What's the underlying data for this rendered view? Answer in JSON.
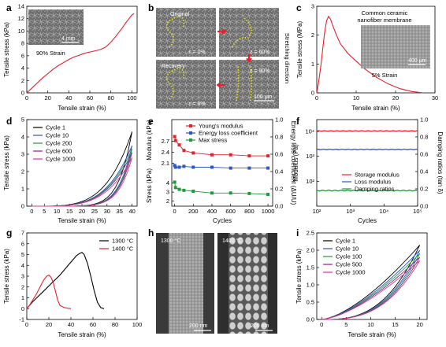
{
  "chart_data": [
    {
      "id": "a",
      "type": "line",
      "panel_label": "a",
      "xlabel": "Tensile strain (%)",
      "ylabel": "Tensile stress (kPa)",
      "xlim": [
        0,
        105
      ],
      "ylim": [
        0,
        14
      ],
      "xticks": [
        "0",
        "20",
        "40",
        "60",
        "80",
        "100"
      ],
      "yticks": [
        "0",
        "2",
        "4",
        "6",
        "8",
        "10",
        "12",
        "14"
      ],
      "series": [
        {
          "color": "#e8202a",
          "x": [
            0,
            5,
            10,
            15,
            20,
            25,
            30,
            35,
            40,
            45,
            50,
            55,
            60,
            65,
            70,
            75,
            80,
            85,
            90,
            95,
            100,
            102
          ],
          "y": [
            0,
            0.8,
            1.6,
            2.4,
            3.1,
            3.8,
            4.4,
            4.9,
            5.4,
            5.8,
            6.1,
            6.4,
            6.6,
            6.8,
            7.0,
            7.4,
            8.2,
            9.2,
            10.3,
            11.5,
            12.6,
            12.8
          ]
        }
      ],
      "inset": {
        "caption": "90% Strain",
        "scale_bar": "4 mm"
      }
    },
    {
      "id": "b",
      "type": "image_grid",
      "panel_label": "b",
      "tiles": [
        {
          "label": "Original",
          "strain": "ε = 0%"
        },
        {
          "label": "",
          "strain": "ε = 60%"
        },
        {
          "label": "Recovery",
          "strain": "ε = 0%"
        },
        {
          "label": "",
          "strain": "ε = 90%"
        }
      ],
      "side_label": "Stretching direction",
      "scale_bar": "100 μm"
    },
    {
      "id": "c",
      "type": "line",
      "panel_label": "c",
      "title": "Common ceramic nanofiber membrane",
      "xlabel": "Tensile strain (%)",
      "ylabel": "Tensile stress (MPa)",
      "xlim": [
        0,
        30
      ],
      "ylim": [
        0,
        3
      ],
      "xticks": [
        "0",
        "10",
        "20",
        "30"
      ],
      "yticks": [
        "0",
        "1",
        "2",
        "3"
      ],
      "series": [
        {
          "color": "#e8202a",
          "x": [
            0,
            0.5,
            1,
            1.5,
            2,
            2.5,
            3,
            3.5,
            4,
            5,
            6,
            8,
            10,
            12,
            15,
            18,
            21,
            24,
            27
          ],
          "y": [
            0,
            0.4,
            0.9,
            1.5,
            2.1,
            2.5,
            2.65,
            2.55,
            2.35,
            2.0,
            1.7,
            1.35,
            1.1,
            0.85,
            0.55,
            0.32,
            0.15,
            0.05,
            0.0
          ]
        }
      ],
      "inset": {
        "caption": "5% Strain",
        "scale_bar": "400 μm"
      }
    },
    {
      "id": "d",
      "type": "line",
      "panel_label": "d",
      "xlabel": "Tensile strain (%)",
      "ylabel": "Tensile stress (kPa)",
      "xlim": [
        -2,
        42
      ],
      "ylim": [
        0,
        5
      ],
      "xticks": [
        "0",
        "5",
        "10",
        "15",
        "20",
        "25",
        "30",
        "35",
        "40"
      ],
      "yticks": [
        "0",
        "1",
        "2",
        "3",
        "4",
        "5"
      ],
      "legend_position": "top-left",
      "series": [
        {
          "name": "Cycle 1",
          "color": "#000000",
          "peak": 4.3
        },
        {
          "name": "Cycle 10",
          "color": "#2b55c9",
          "peak": 3.5
        },
        {
          "name": "Cycle 200",
          "color": "#1e9b3a",
          "peak": 3.3
        },
        {
          "name": "Cycle 600",
          "color": "#8a1f9a",
          "peak": 3.1
        },
        {
          "name": "Cycle 1000",
          "color": "#d63a8e",
          "peak": 2.8
        }
      ]
    },
    {
      "id": "e",
      "type": "line",
      "panel_label": "e",
      "xlabel": "Cycles",
      "ylabel_left_top": "Modulus (kPa)",
      "ylabel_left_bottom": "Stress (kPa)",
      "ylabel_right": "Energy loss coefficient (ΔU/U)",
      "xlim": [
        -30,
        1050
      ],
      "xticks": [
        "0",
        "200",
        "400",
        "600",
        "800",
        "1000"
      ],
      "yticks_left_top": [
        "2.1",
        "2.4",
        "2.7"
      ],
      "yticks_left_bottom": [
        "2",
        "3",
        "4"
      ],
      "yticks_right": [
        "0.0",
        "0.2",
        "0.4",
        "0.6",
        "0.8",
        "1.0"
      ],
      "legend_position": "top-right",
      "x": [
        1,
        10,
        50,
        100,
        200,
        400,
        600,
        800,
        1000
      ],
      "series": [
        {
          "name": "Young's modulus",
          "color": "#e8202a",
          "marker": "square",
          "axis": "left_top",
          "values": [
            2.83,
            2.72,
            2.6,
            2.45,
            2.38,
            2.33,
            2.33,
            2.3,
            2.3
          ]
        },
        {
          "name": "Energy loss coefficient",
          "color": "#2b55c9",
          "marker": "square",
          "axis": "right",
          "values": [
            0.47,
            0.45,
            0.45,
            0.46,
            0.45,
            0.45,
            0.44,
            0.44,
            0.44
          ]
        },
        {
          "name": "Max stress",
          "color": "#1e9b3a",
          "marker": "square",
          "axis": "left_bottom",
          "values": [
            4.1,
            3.5,
            3.3,
            3.2,
            3.1,
            2.9,
            2.9,
            2.85,
            2.75
          ]
        }
      ]
    },
    {
      "id": "f",
      "type": "line",
      "panel_label": "f",
      "xlabel": "Cycles",
      "ylabel": "Modulus (Pa)",
      "ylabel_right": "Damping ratios (tan δ)",
      "xscale": "log",
      "yscale": "log",
      "xlim": [
        100,
        100000
      ],
      "ylim": [
        10,
        30000
      ],
      "xticks": [
        "10²",
        "10³",
        "10⁴",
        "10⁵"
      ],
      "yticks": [
        "10²",
        "10³",
        "10⁴"
      ],
      "yticks_right": [
        "0.0",
        "0.2",
        "0.4",
        "0.6",
        "0.8",
        "1.0"
      ],
      "legend_position": "bottom-right",
      "series": [
        {
          "name": "Storage modulus",
          "color": "#e8202a",
          "level": 10500
        },
        {
          "name": "Loss modulus",
          "color": "#2b55c9",
          "level": 1900
        },
        {
          "name": "Damping ratios",
          "color": "#1e9b3a",
          "level": 0.18
        }
      ]
    },
    {
      "id": "g",
      "type": "line",
      "panel_label": "g",
      "xlabel": "Tensile strain (%)",
      "ylabel": "Tensile stress (kPa)",
      "xlim": [
        0,
        100
      ],
      "ylim": [
        -1,
        7
      ],
      "xticks": [
        "0",
        "20",
        "40",
        "60",
        "80",
        "100"
      ],
      "yticks": [
        "-1",
        "0",
        "1",
        "2",
        "3",
        "4",
        "5",
        "6",
        "7"
      ],
      "legend_position": "top-right",
      "series": [
        {
          "name": "1300 °C",
          "color": "#000000",
          "x": [
            0,
            5,
            10,
            15,
            20,
            25,
            30,
            35,
            40,
            45,
            48,
            50,
            52,
            55,
            58,
            61,
            64,
            67,
            70
          ],
          "y": [
            0,
            0.6,
            1.1,
            1.6,
            2.1,
            2.6,
            3.1,
            3.7,
            4.3,
            4.9,
            5.1,
            5.2,
            5.0,
            4.2,
            3.0,
            1.7,
            0.6,
            0.1,
            0.0
          ]
        },
        {
          "name": "1400 °C",
          "color": "#e8202a",
          "x": [
            0,
            3,
            6,
            9,
            12,
            15,
            18,
            20,
            22,
            24,
            26,
            28,
            30,
            34,
            40
          ],
          "y": [
            0,
            0.4,
            0.9,
            1.4,
            2.0,
            2.6,
            3.0,
            3.1,
            2.9,
            2.4,
            1.6,
            0.8,
            0.3,
            0.1,
            0.0
          ]
        }
      ]
    },
    {
      "id": "h",
      "type": "image_pair",
      "panel_label": "h",
      "tiles": [
        {
          "label": "1300 °C",
          "scale_bar": "200 nm"
        },
        {
          "label": "1400 °C",
          "scale_bar": "200 nm"
        }
      ]
    },
    {
      "id": "i",
      "type": "line",
      "panel_label": "i",
      "xlabel": "Tensile strain (%)",
      "ylabel": "Tensile stress (kPa)",
      "xlim": [
        -1,
        21.5
      ],
      "ylim": [
        0,
        2.5
      ],
      "xticks": [
        "0",
        "5",
        "10",
        "15",
        "20"
      ],
      "yticks": [
        "0.0",
        "0.5",
        "1.0",
        "1.5",
        "2.0",
        "2.5"
      ],
      "legend_position": "top-left",
      "series": [
        {
          "name": "Cycle 1",
          "color": "#000000",
          "peak": 2.15
        },
        {
          "name": "Cycle 10",
          "color": "#2b55c9",
          "peak": 2.0
        },
        {
          "name": "Cycle 100",
          "color": "#1e9b3a",
          "peak": 1.9
        },
        {
          "name": "Cycle 500",
          "color": "#8a1f9a",
          "peak": 1.8
        },
        {
          "name": "Cycle 1000",
          "color": "#d63a8e",
          "peak": 1.7
        }
      ]
    }
  ]
}
